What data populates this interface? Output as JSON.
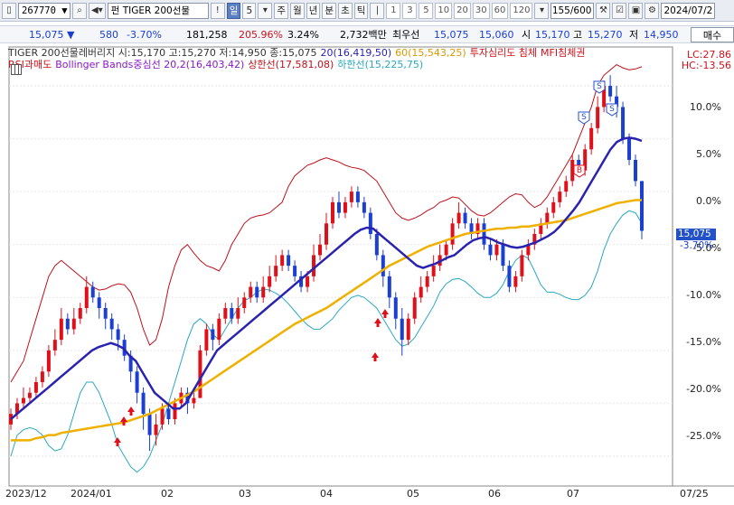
{
  "toolbar": {
    "code": "267770",
    "name": "TIGER 200선물",
    "name_prefix": "펀",
    "periods": [
      "일",
      "5",
      "주",
      "월",
      "년",
      "분",
      "초",
      "틱"
    ],
    "active_period": "일",
    "numbers": [
      "1",
      "3",
      "5",
      "10",
      "20",
      "30",
      "60",
      "120"
    ],
    "count": "155",
    "count_total": "/600",
    "date": "2024/07/2"
  },
  "quote": {
    "price": "15,075",
    "change": "580",
    "change_pct": "-3.70%",
    "volume": "181,258",
    "volume_ratio": "205.96%",
    "turnover_rate": "3.24%",
    "amount": "2,732백만",
    "best_label": "최우선",
    "best_ask": "15,075",
    "best_bid": "15,060",
    "high_label": "시",
    "open": "15,170",
    "hi_label": "고",
    "high": "15,270",
    "lo_label": "저",
    "low": "14,950",
    "buy_label": "매수"
  },
  "legend": {
    "main": "TIGER 200선물레버리지 시:15,170 고:15,270 저:14,950 종:15,075",
    "ma20": "20(16,419,50)",
    "ma60": "60(15,543,25)",
    "psy": "투자심리도 침체",
    "mfi": "MFI침체권",
    "rsi": "RSI과매도",
    "bb_mid": "Bollinger Bands중심선 20,2(16,403,42)",
    "bb_up": "상한선(17,581,08)",
    "bb_low": "하한선(15,225,75)",
    "lc": "LC:27.86",
    "hc": "HC:-13.56"
  },
  "colors": {
    "up": "#e0101a",
    "down": "#1b3fd0",
    "ma20": "#2a23b0",
    "ma60": "#f0b000",
    "bb": "#c0101a",
    "bbLow": "#2aa8c0",
    "price_tag": "#2352c8"
  },
  "axis": {
    "pct_labels": [
      "10.0%",
      "5.0%",
      "0.0%",
      "-5.0%",
      "-10.0%",
      "-15.0%",
      "-20.0%",
      "-25.0%"
    ],
    "price_tag": "15,075",
    "price_pct": "-3.70%",
    "dates": [
      "2023/12",
      "2024/01",
      "02",
      "03",
      "04",
      "05",
      "06",
      "07",
      "07/25"
    ]
  },
  "chart_data": {
    "type": "candlestick",
    "y_unit": "% change",
    "ylim": [
      -28,
      12
    ],
    "series": [
      {
        "name": "20",
        "values": [
          -21.5,
          -21,
          -20.5,
          -20,
          -19.5,
          -19,
          -18.5,
          -18,
          -17.5,
          -17,
          -16.5,
          -16,
          -15.5,
          -15,
          -14.7,
          -14.5,
          -14.3,
          -14.5,
          -14.8,
          -15.5,
          -16,
          -17,
          -18,
          -19,
          -19.5,
          -20,
          -20.5,
          -20.5,
          -20,
          -19,
          -18,
          -17,
          -16,
          -15,
          -14.5,
          -14,
          -13.5,
          -13,
          -12.5,
          -12,
          -11.5,
          -11,
          -10.5,
          -10,
          -9.5,
          -9,
          -8.5,
          -8,
          -7.5,
          -7,
          -6.5,
          -6,
          -5.5,
          -5,
          -4.5,
          -4,
          -3.6,
          -3.4,
          -3.5,
          -4,
          -4.5,
          -5,
          -5.5,
          -6,
          -6.5,
          -7,
          -7.2,
          -7,
          -6.8,
          -6.5,
          -6.2,
          -6,
          -5.5,
          -5,
          -4.6,
          -4.4,
          -4.3,
          -4.5,
          -4.8,
          -5,
          -5.2,
          -5.3,
          -5.2,
          -5,
          -4.8,
          -4.5,
          -4.2,
          -3.8,
          -3.2,
          -2.5,
          -1.8,
          -1,
          0,
          1,
          2,
          3,
          4,
          4.7,
          5,
          5.1,
          5,
          4.8
        ]
      },
      {
        "name": "60",
        "values": [
          -23.5,
          -23.5,
          -23.5,
          -23.5,
          -23.3,
          -23.2,
          -23,
          -23,
          -22.8,
          -22.7,
          -22.6,
          -22.5,
          -22.4,
          -22.3,
          -22.2,
          -22.1,
          -22,
          -21.9,
          -21.8,
          -21.6,
          -21.4,
          -21.2,
          -21,
          -20.7,
          -20.4,
          -20.1,
          -19.8,
          -19.5,
          -19.2,
          -18.9,
          -18.5,
          -18.1,
          -17.7,
          -17.3,
          -16.9,
          -16.5,
          -16.1,
          -15.7,
          -15.3,
          -14.9,
          -14.5,
          -14.1,
          -13.7,
          -13.3,
          -12.9,
          -12.5,
          -12.2,
          -11.9,
          -11.6,
          -11.3,
          -11,
          -10.6,
          -10.2,
          -9.8,
          -9.4,
          -9,
          -8.6,
          -8.2,
          -7.8,
          -7.4,
          -7,
          -6.7,
          -6.4,
          -6.1,
          -5.8,
          -5.5,
          -5.2,
          -5,
          -4.8,
          -4.6,
          -4.4,
          -4.2,
          -4,
          -3.9,
          -3.8,
          -3.7,
          -3.6,
          -3.5,
          -3.5,
          -3.4,
          -3.4,
          -3.3,
          -3.3,
          -3.2,
          -3.1,
          -3,
          -2.9,
          -2.8,
          -2.7,
          -2.5,
          -2.3,
          -2.1,
          -1.9,
          -1.7,
          -1.5,
          -1.3,
          -1.1,
          -1,
          -0.9,
          -0.8,
          -0.8
        ]
      },
      {
        "name": "상한선",
        "values": [
          -18,
          -17,
          -16,
          -14,
          -12,
          -10,
          -8,
          -7,
          -6.5,
          -7,
          -7.5,
          -8,
          -8.5,
          -9,
          -9.3,
          -9.2,
          -8.9,
          -8.7,
          -8.8,
          -9.5,
          -11,
          -13,
          -14.5,
          -14,
          -12,
          -9,
          -7,
          -5.5,
          -5,
          -5.8,
          -6.5,
          -7,
          -7.2,
          -7.5,
          -6.5,
          -5,
          -4,
          -3,
          -2.5,
          -2.3,
          -2.2,
          -2,
          -1.5,
          -1,
          0.5,
          1.5,
          2,
          2.5,
          2.7,
          3,
          3.2,
          3,
          2.8,
          2.5,
          2.3,
          2.2,
          2,
          1.5,
          1,
          0,
          -1,
          -2,
          -2.5,
          -2.7,
          -2.5,
          -2.2,
          -1.8,
          -1.5,
          -1,
          -0.8,
          -0.5,
          -0.6,
          -1.2,
          -1.8,
          -2.2,
          -2.3,
          -2,
          -1.5,
          -1,
          -0.5,
          -0.2,
          -0.3,
          -1,
          -1.5,
          -1.2,
          -0.5,
          0.5,
          1.5,
          2.5,
          3.5,
          5,
          6.5,
          8,
          10,
          11,
          11.5,
          12,
          11.7,
          11.5,
          11.6,
          11.8
        ]
      },
      {
        "name": "하한선",
        "values": [
          -25,
          -23,
          -22.5,
          -22.3,
          -22.5,
          -23,
          -24,
          -24.5,
          -24.3,
          -23,
          -21,
          -19,
          -18,
          -18,
          -19,
          -20.5,
          -22,
          -24,
          -25,
          -26,
          -26.5,
          -26,
          -25,
          -23.5,
          -22,
          -20,
          -18,
          -16,
          -14,
          -12.5,
          -12,
          -12.5,
          -13.5,
          -14,
          -13,
          -12,
          -11,
          -10.3,
          -10,
          -9.5,
          -9.2,
          -9.3,
          -9.6,
          -10,
          -10.6,
          -11.3,
          -12,
          -12.6,
          -13,
          -13,
          -12.5,
          -12,
          -11.2,
          -10.6,
          -10,
          -9.8,
          -10,
          -10.5,
          -11,
          -12,
          -13,
          -14,
          -14.6,
          -14.4,
          -13.8,
          -12.8,
          -11.8,
          -10.8,
          -9.5,
          -8.7,
          -8.3,
          -8.2,
          -8.5,
          -9,
          -9.6,
          -10,
          -10,
          -9.6,
          -8.8,
          -7.5,
          -6.5,
          -6,
          -6.3,
          -7.5,
          -8.8,
          -9.5,
          -9.5,
          -9.7,
          -10,
          -10.2,
          -10.2,
          -9.8,
          -9,
          -7.5,
          -5.5,
          -4,
          -3,
          -2.2,
          -1.8,
          -2,
          -3
        ]
      }
    ],
    "candles_note": "",
    "candles": [
      [
        -22,
        -21,
        -22.5,
        -20.5
      ],
      [
        -21,
        -20,
        -21.5,
        -19.5
      ],
      [
        -20,
        -19.5,
        -20.5,
        -18.5
      ],
      [
        -19.5,
        -19,
        -20,
        -18.5
      ],
      [
        -19,
        -18,
        -19.5,
        -17.5
      ],
      [
        -18,
        -17,
        -18.5,
        -16.5
      ],
      [
        -17,
        -15,
        -17.5,
        -14.5
      ],
      [
        -15,
        -14,
        -15.5,
        -13
      ],
      [
        -14,
        -12,
        -14.5,
        -11
      ],
      [
        -12,
        -13,
        -13.5,
        -11.5
      ],
      [
        -13,
        -12,
        -13.5,
        -11
      ],
      [
        -12,
        -11,
        -12.5,
        -10.5
      ],
      [
        -11,
        -9,
        -11.5,
        -8
      ],
      [
        -9,
        -10,
        -10.5,
        -8.5
      ],
      [
        -10,
        -11,
        -12,
        -9.5
      ],
      [
        -11,
        -12,
        -13,
        -10.5
      ],
      [
        -12,
        -13,
        -14,
        -11.5
      ],
      [
        -13,
        -14,
        -15,
        -12.5
      ],
      [
        -14,
        -15.5,
        -16,
        -13.5
      ],
      [
        -15.5,
        -17,
        -18,
        -15
      ],
      [
        -17,
        -19,
        -20,
        -16.5
      ],
      [
        -19,
        -21,
        -22.5,
        -18.5
      ],
      [
        -21,
        -23,
        -24.5,
        -20.5
      ],
      [
        -23,
        -22,
        -24,
        -21
      ],
      [
        -22,
        -20.5,
        -22.5,
        -20
      ],
      [
        -20.5,
        -21.5,
        -22,
        -20
      ],
      [
        -21.5,
        -20,
        -22,
        -19.5
      ],
      [
        -20,
        -19,
        -20.5,
        -18.5
      ],
      [
        -19,
        -20,
        -21,
        -18.5
      ],
      [
        -20,
        -19.5,
        -20.5,
        -18.5
      ],
      [
        -19.5,
        -15,
        -19.5,
        -14.5
      ],
      [
        -15,
        -13,
        -15.5,
        -12.5
      ],
      [
        -13,
        -14,
        -15,
        -12.5
      ],
      [
        -14,
        -12,
        -14.5,
        -11.5
      ],
      [
        -12,
        -11,
        -12.5,
        -10.5
      ],
      [
        -11,
        -12,
        -12.5,
        -10.5
      ],
      [
        -12,
        -11,
        -12.5,
        -10
      ],
      [
        -11,
        -10,
        -11.5,
        -9.5
      ],
      [
        -10,
        -9,
        -10.5,
        -8.5
      ],
      [
        -9,
        -10,
        -10.5,
        -8.5
      ],
      [
        -10,
        -9,
        -10.5,
        -8
      ],
      [
        -9,
        -8,
        -9.5,
        -7
      ],
      [
        -8,
        -7,
        -8.5,
        -6
      ],
      [
        -7,
        -6,
        -7.5,
        -5.5
      ],
      [
        -6,
        -7,
        -7.5,
        -5.5
      ],
      [
        -7,
        -8,
        -8.5,
        -6.5
      ],
      [
        -8,
        -9,
        -9.5,
        -7.5
      ],
      [
        -9,
        -8,
        -9.5,
        -7.5
      ],
      [
        -8,
        -6,
        -8.5,
        -5
      ],
      [
        -6,
        -5,
        -6.5,
        -4
      ],
      [
        -5,
        -3,
        -5.5,
        -2
      ],
      [
        -3,
        -1,
        -3.5,
        -0.5
      ],
      [
        -1,
        -2,
        -2.5,
        0
      ],
      [
        -2,
        -1,
        -2.5,
        -0.5
      ],
      [
        -1,
        0,
        -1.5,
        0.5
      ],
      [
        0,
        -1,
        -1.5,
        0.5
      ],
      [
        -1,
        -2,
        -2.5,
        -0.5
      ],
      [
        -2,
        -4,
        -4.5,
        -1.5
      ],
      [
        -4,
        -6,
        -6.5,
        -3.5
      ],
      [
        -6,
        -8,
        -9,
        -5.5
      ],
      [
        -8,
        -10,
        -11,
        -7.5
      ],
      [
        -10,
        -12,
        -13,
        -9.5
      ],
      [
        -12,
        -14,
        -15.5,
        -11
      ],
      [
        -14,
        -12,
        -14.5,
        -11.5
      ],
      [
        -12,
        -10,
        -12.5,
        -9.5
      ],
      [
        -10,
        -9,
        -10.5,
        -8
      ],
      [
        -9,
        -8,
        -9.5,
        -7.5
      ],
      [
        -8,
        -7,
        -8.5,
        -6
      ],
      [
        -7,
        -6,
        -7.5,
        -5
      ],
      [
        -6,
        -5,
        -6.5,
        -4.5
      ],
      [
        -5,
        -3,
        -5.5,
        -2.5
      ],
      [
        -3,
        -2,
        -3.5,
        -1
      ],
      [
        -2,
        -3,
        -3.5,
        -1.5
      ],
      [
        -3,
        -4,
        -4.5,
        -2.5
      ],
      [
        -4,
        -3,
        -4.5,
        -2.5
      ],
      [
        -3,
        -5,
        -5.5,
        -2.5
      ],
      [
        -5,
        -6,
        -6.5,
        -4.5
      ],
      [
        -6,
        -5,
        -6.5,
        -4.5
      ],
      [
        -5,
        -7,
        -7.5,
        -4.5
      ],
      [
        -7,
        -9,
        -9.5,
        -6.5
      ],
      [
        -9,
        -8,
        -9.5,
        -7.5
      ],
      [
        -8,
        -6,
        -8.5,
        -5.5
      ],
      [
        -6,
        -5,
        -6.5,
        -4.5
      ],
      [
        -5,
        -4,
        -5.5,
        -3.5
      ],
      [
        -4,
        -3,
        -4.5,
        -2.5
      ],
      [
        -3,
        -2,
        -3.5,
        -1.5
      ],
      [
        -2,
        -1,
        -2.5,
        -0.5
      ],
      [
        -1,
        0,
        -1.5,
        0.5
      ],
      [
        0,
        1,
        -0.5,
        1.5
      ],
      [
        1,
        3,
        0.5,
        3.5
      ],
      [
        3,
        2,
        1.5,
        3.5
      ],
      [
        2,
        4,
        1.5,
        4.5
      ],
      [
        4,
        6,
        3.5,
        6.5
      ],
      [
        6,
        8,
        5.5,
        9
      ],
      [
        8,
        10,
        7.5,
        10.5
      ],
      [
        10,
        9,
        8.5,
        11
      ],
      [
        9,
        8,
        7,
        10
      ],
      [
        8,
        5,
        4.5,
        8.5
      ],
      [
        5,
        3,
        2.5,
        5.5
      ],
      [
        3,
        1,
        0.5,
        3.5
      ],
      [
        1,
        -3.7,
        -4.5,
        1
      ]
    ]
  }
}
